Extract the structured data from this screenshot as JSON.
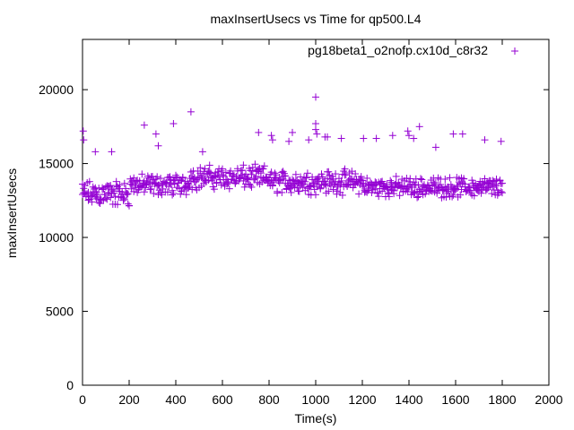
{
  "chart_data": {
    "type": "scatter",
    "title": "maxInsertUsecs vs Time for qp500.L4",
    "xlabel": "Time(s)",
    "ylabel": "maxInsertUsecs",
    "xlim": [
      0,
      2000
    ],
    "ylim": [
      0,
      23400
    ],
    "x_ticks": [
      0,
      200,
      400,
      600,
      800,
      1000,
      1200,
      1400,
      1600,
      1800,
      2000
    ],
    "y_ticks": [
      0,
      5000,
      10000,
      15000,
      20000
    ],
    "legend_placement": "top-right",
    "grid": false,
    "series": [
      {
        "name": "pg18beta1_o2nofp.cx10d_c8r32",
        "marker": "plus",
        "color": "#9400d3",
        "x_start": 0,
        "x_end": 1800,
        "sample_interval_s": 5,
        "typical_band": [
          12000,
          15000
        ],
        "band_by_time": [
          {
            "from": 0,
            "to": 200,
            "low": 11900,
            "high": 14000
          },
          {
            "from": 200,
            "to": 450,
            "low": 12700,
            "high": 14400
          },
          {
            "from": 450,
            "to": 800,
            "low": 13100,
            "high": 15000
          },
          {
            "from": 800,
            "to": 1200,
            "low": 12800,
            "high": 14700
          },
          {
            "from": 1200,
            "to": 1800,
            "low": 12600,
            "high": 14200
          }
        ],
        "outliers": [
          {
            "x": 3,
            "y": 17200
          },
          {
            "x": 5,
            "y": 16600
          },
          {
            "x": 55,
            "y": 15800
          },
          {
            "x": 125,
            "y": 15800
          },
          {
            "x": 265,
            "y": 17600
          },
          {
            "x": 315,
            "y": 17000
          },
          {
            "x": 325,
            "y": 16200
          },
          {
            "x": 390,
            "y": 17700
          },
          {
            "x": 465,
            "y": 18500
          },
          {
            "x": 515,
            "y": 15800
          },
          {
            "x": 755,
            "y": 17100
          },
          {
            "x": 810,
            "y": 16900
          },
          {
            "x": 815,
            "y": 16600
          },
          {
            "x": 885,
            "y": 16500
          },
          {
            "x": 900,
            "y": 17100
          },
          {
            "x": 970,
            "y": 16600
          },
          {
            "x": 1000,
            "y": 19500
          },
          {
            "x": 1000,
            "y": 17700
          },
          {
            "x": 1000,
            "y": 17300
          },
          {
            "x": 1005,
            "y": 17000
          },
          {
            "x": 1040,
            "y": 16800
          },
          {
            "x": 1050,
            "y": 16800
          },
          {
            "x": 1110,
            "y": 16700
          },
          {
            "x": 1205,
            "y": 16700
          },
          {
            "x": 1260,
            "y": 16700
          },
          {
            "x": 1330,
            "y": 16900
          },
          {
            "x": 1395,
            "y": 17200
          },
          {
            "x": 1400,
            "y": 16900
          },
          {
            "x": 1420,
            "y": 16700
          },
          {
            "x": 1445,
            "y": 17500
          },
          {
            "x": 1515,
            "y": 16100
          },
          {
            "x": 1590,
            "y": 17000
          },
          {
            "x": 1630,
            "y": 17000
          },
          {
            "x": 1725,
            "y": 16600
          },
          {
            "x": 1795,
            "y": 16500
          }
        ]
      }
    ]
  }
}
